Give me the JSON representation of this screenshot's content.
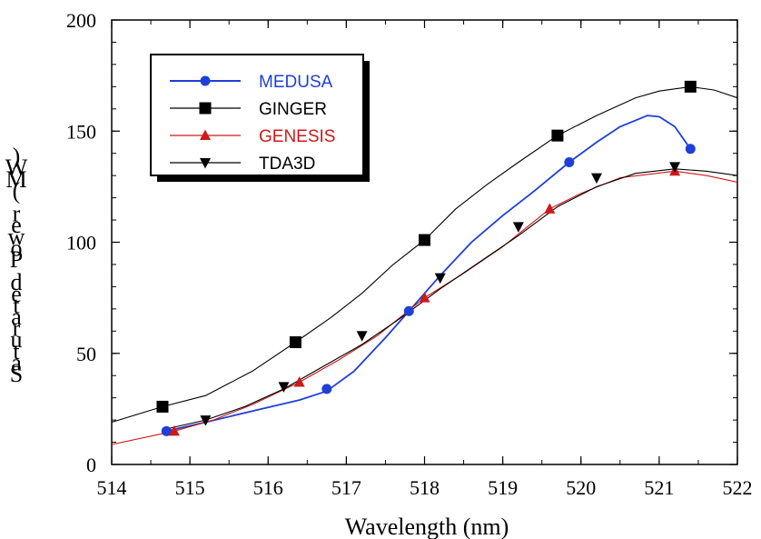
{
  "chart_data": {
    "type": "line",
    "title": "",
    "xlabel": "Wavelength (nm)",
    "ylabel": "Saturated Power (MW)",
    "xlim": [
      514,
      522
    ],
    "ylim": [
      0,
      200
    ],
    "xticks": [
      "514",
      "515",
      "516",
      "517",
      "518",
      "519",
      "520",
      "521",
      "522"
    ],
    "yticks": [
      "0",
      "50",
      "100",
      "150",
      "200"
    ],
    "grid": false,
    "legend_position": "top-left",
    "series": [
      {
        "name": "MEDUSA",
        "color": "#1f3fd6",
        "marker": "circle",
        "points": [
          [
            514.7,
            15
          ],
          [
            516.75,
            34
          ],
          [
            517.8,
            69
          ],
          [
            519.85,
            136
          ],
          [
            521.4,
            142
          ]
        ],
        "curve": [
          [
            514.7,
            15
          ],
          [
            515.2,
            19
          ],
          [
            515.8,
            24
          ],
          [
            516.4,
            29
          ],
          [
            516.75,
            33
          ],
          [
            517.1,
            42
          ],
          [
            517.5,
            57
          ],
          [
            517.8,
            69
          ],
          [
            518.2,
            85
          ],
          [
            518.6,
            100
          ],
          [
            519.0,
            112
          ],
          [
            519.4,
            123
          ],
          [
            519.85,
            136
          ],
          [
            520.2,
            145
          ],
          [
            520.5,
            152
          ],
          [
            520.85,
            157
          ],
          [
            521.0,
            156.5
          ],
          [
            521.2,
            152
          ],
          [
            521.4,
            142
          ]
        ]
      },
      {
        "name": "GINGER",
        "color": "#000000",
        "marker": "square",
        "points": [
          [
            514.65,
            26
          ],
          [
            516.35,
            55
          ],
          [
            518.0,
            101
          ],
          [
            519.7,
            148
          ],
          [
            521.4,
            170
          ]
        ],
        "curve": [
          [
            514.0,
            19
          ],
          [
            514.65,
            26
          ],
          [
            515.2,
            31
          ],
          [
            515.8,
            42
          ],
          [
            516.35,
            55
          ],
          [
            516.8,
            66
          ],
          [
            517.2,
            77
          ],
          [
            517.6,
            90
          ],
          [
            518.0,
            101
          ],
          [
            518.4,
            115
          ],
          [
            518.8,
            126
          ],
          [
            519.2,
            136
          ],
          [
            519.7,
            148
          ],
          [
            520.2,
            157
          ],
          [
            520.7,
            165
          ],
          [
            521.0,
            168
          ],
          [
            521.4,
            170
          ],
          [
            521.7,
            168.5
          ],
          [
            522.0,
            165
          ]
        ]
      },
      {
        "name": "GENESIS",
        "color": "#cc1a1a",
        "marker": "triangle-up",
        "points": [
          [
            514.8,
            15
          ],
          [
            516.4,
            37
          ],
          [
            518.0,
            75
          ],
          [
            519.6,
            115
          ],
          [
            521.2,
            132
          ]
        ],
        "curve": [
          [
            514.0,
            9
          ],
          [
            514.8,
            15
          ],
          [
            515.3,
            20
          ],
          [
            515.8,
            27
          ],
          [
            516.4,
            37
          ],
          [
            516.9,
            47
          ],
          [
            517.4,
            58
          ],
          [
            518.0,
            75
          ],
          [
            518.5,
            86
          ],
          [
            519.0,
            98
          ],
          [
            519.6,
            115
          ],
          [
            520.0,
            122
          ],
          [
            520.5,
            129
          ],
          [
            521.2,
            132
          ],
          [
            521.6,
            130
          ],
          [
            522.0,
            127
          ]
        ]
      },
      {
        "name": "TDA3D",
        "color": "#000000",
        "marker": "triangle-down",
        "points": [
          [
            515.2,
            20
          ],
          [
            516.2,
            35
          ],
          [
            517.2,
            58
          ],
          [
            518.2,
            84
          ],
          [
            519.2,
            107
          ],
          [
            520.2,
            129
          ],
          [
            521.2,
            134
          ]
        ],
        "curve": [
          [
            514.7,
            16
          ],
          [
            515.2,
            20
          ],
          [
            515.7,
            26
          ],
          [
            516.2,
            34
          ],
          [
            516.7,
            44
          ],
          [
            517.2,
            54
          ],
          [
            517.7,
            66
          ],
          [
            518.2,
            79
          ],
          [
            518.7,
            91
          ],
          [
            519.2,
            103
          ],
          [
            519.7,
            116
          ],
          [
            520.2,
            125
          ],
          [
            520.7,
            131
          ],
          [
            521.2,
            133
          ],
          [
            521.6,
            132
          ],
          [
            522.0,
            130
          ]
        ]
      }
    ]
  }
}
